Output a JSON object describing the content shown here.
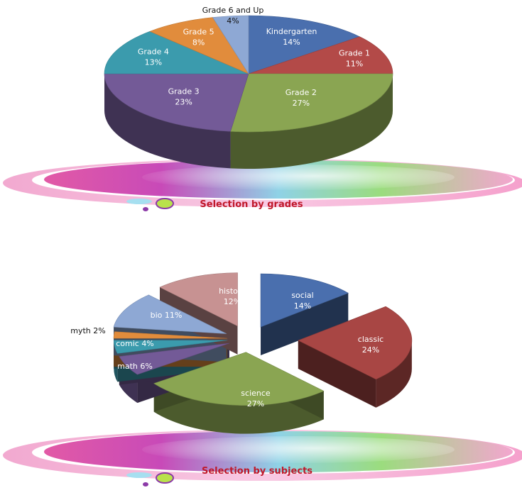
{
  "chart_data": [
    {
      "type": "pie",
      "title": "Selection by grades",
      "slices": [
        {
          "label": "Kindergarten",
          "value": 14,
          "display": "14%",
          "color": "#4a6fae"
        },
        {
          "label": "Grade 1",
          "value": 11,
          "display": "11%",
          "color": "#b34a48"
        },
        {
          "label": "Grade 2",
          "value": 27,
          "display": "27%",
          "color": "#8aa552"
        },
        {
          "label": "Grade 3",
          "value": 23,
          "display": "23%",
          "color": "#735a97"
        },
        {
          "label": "Grade 4",
          "value": 13,
          "display": "13%",
          "color": "#3b9bad"
        },
        {
          "label": "Grade 5",
          "value": 8,
          "display": "8%",
          "color": "#e18c3c"
        },
        {
          "label": "Grade 6 and Up",
          "value": 4,
          "display": "4%",
          "color": "#8ea8d4"
        }
      ]
    },
    {
      "type": "pie",
      "title": "Selection by subjects",
      "slices": [
        {
          "label": "social",
          "value": 14,
          "display": "14%",
          "color": "#4a6fae"
        },
        {
          "label": "classic",
          "value": 24,
          "display": "24%",
          "color": "#a84644"
        },
        {
          "label": "science",
          "value": 27,
          "display": "27%",
          "color": "#8aa552"
        },
        {
          "label": "math",
          "value": 6,
          "display": "6%",
          "color": "#735a97"
        },
        {
          "label": "comic",
          "value": 4,
          "display": "4%",
          "color": "#3b9bad"
        },
        {
          "label": "myth",
          "value": 2,
          "display": "2%",
          "color": "#e18c3c"
        },
        {
          "label": "bio",
          "value": 11,
          "display": "11%",
          "color": "#8ea8d4"
        },
        {
          "label": "history",
          "value": 12,
          "display": "12%",
          "color": "#c79292"
        }
      ]
    }
  ],
  "caption_color": "#c0182a"
}
